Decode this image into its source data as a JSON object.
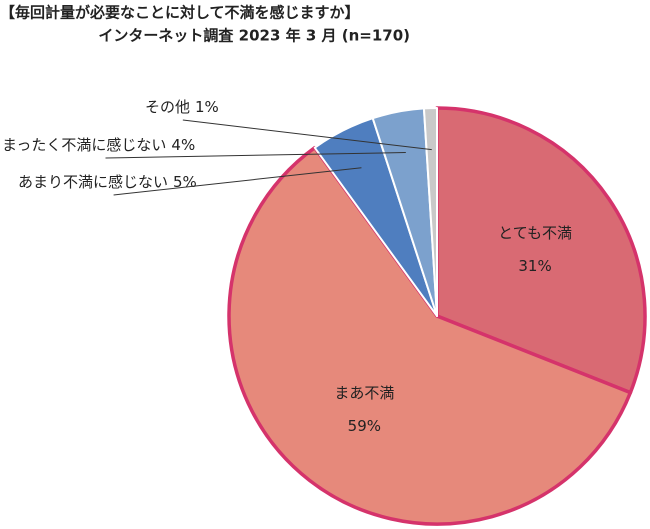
{
  "chart_data": {
    "type": "pie",
    "title": "【毎回計量が必要なことに対して不満を感じますか】",
    "subtitle": "インターネット調査 2023 年 3 月 (n=170)",
    "categories": [
      "とても不満",
      "まあ不満",
      "あまり不満に感じない",
      "まったく不満に感じない",
      "その他"
    ],
    "values": [
      31,
      59,
      5,
      4,
      1
    ],
    "value_labels": [
      "31%",
      "59%",
      "5%",
      "4%",
      "1%"
    ],
    "colors": [
      "#d96a73",
      "#e6897b",
      "#4f7ebf",
      "#7ca1cd",
      "#c9c9c9"
    ],
    "edge_colors": [
      "#d5336b",
      "#d5336b",
      "#ffffff",
      "#ffffff",
      "#ffffff"
    ]
  }
}
